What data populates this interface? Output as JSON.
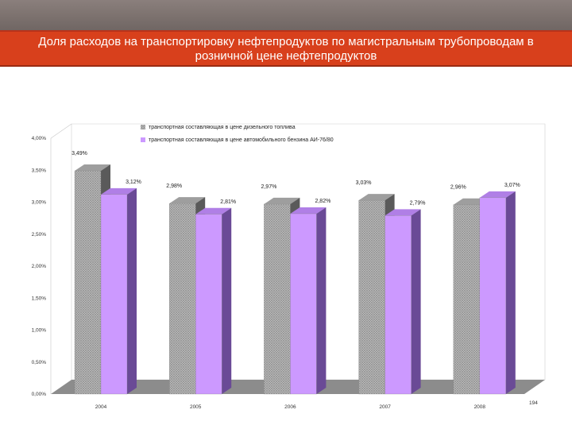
{
  "title": "Доля расходов на транспортировку нефтепродуктов по магистральным трубопроводам в розничной цене нефтепродуктов",
  "page_number": "194",
  "colors": {
    "banner": "#d8401c",
    "series_1": "#b0b0b0",
    "series_2": "#cc99ff"
  },
  "chart_data": {
    "type": "bar",
    "categories": [
      "2004",
      "2005",
      "2006",
      "2007",
      "2008"
    ],
    "series": [
      {
        "name": "транспортная составляющая в цене дизельного топлива",
        "values": [
          3.49,
          2.98,
          2.97,
          3.03,
          2.96
        ],
        "labels": [
          "3,49%",
          "2,98%",
          "2,97%",
          "3,03%",
          "2,96%"
        ]
      },
      {
        "name": "транспортная составляющая в цене автомобильного бензина АИ-76/80",
        "values": [
          3.12,
          2.81,
          2.82,
          2.79,
          3.07
        ],
        "labels": [
          "3,12%",
          "2,81%",
          "2,82%",
          "2,79%",
          "3,07%"
        ]
      }
    ],
    "yticks": [
      "0,00%",
      "0,50%",
      "1,00%",
      "1,50%",
      "2,00%",
      "2,50%",
      "3,00%",
      "3,50%",
      "4,00%"
    ],
    "ylim": [
      0,
      4
    ],
    "legend": "top",
    "grid": false
  }
}
